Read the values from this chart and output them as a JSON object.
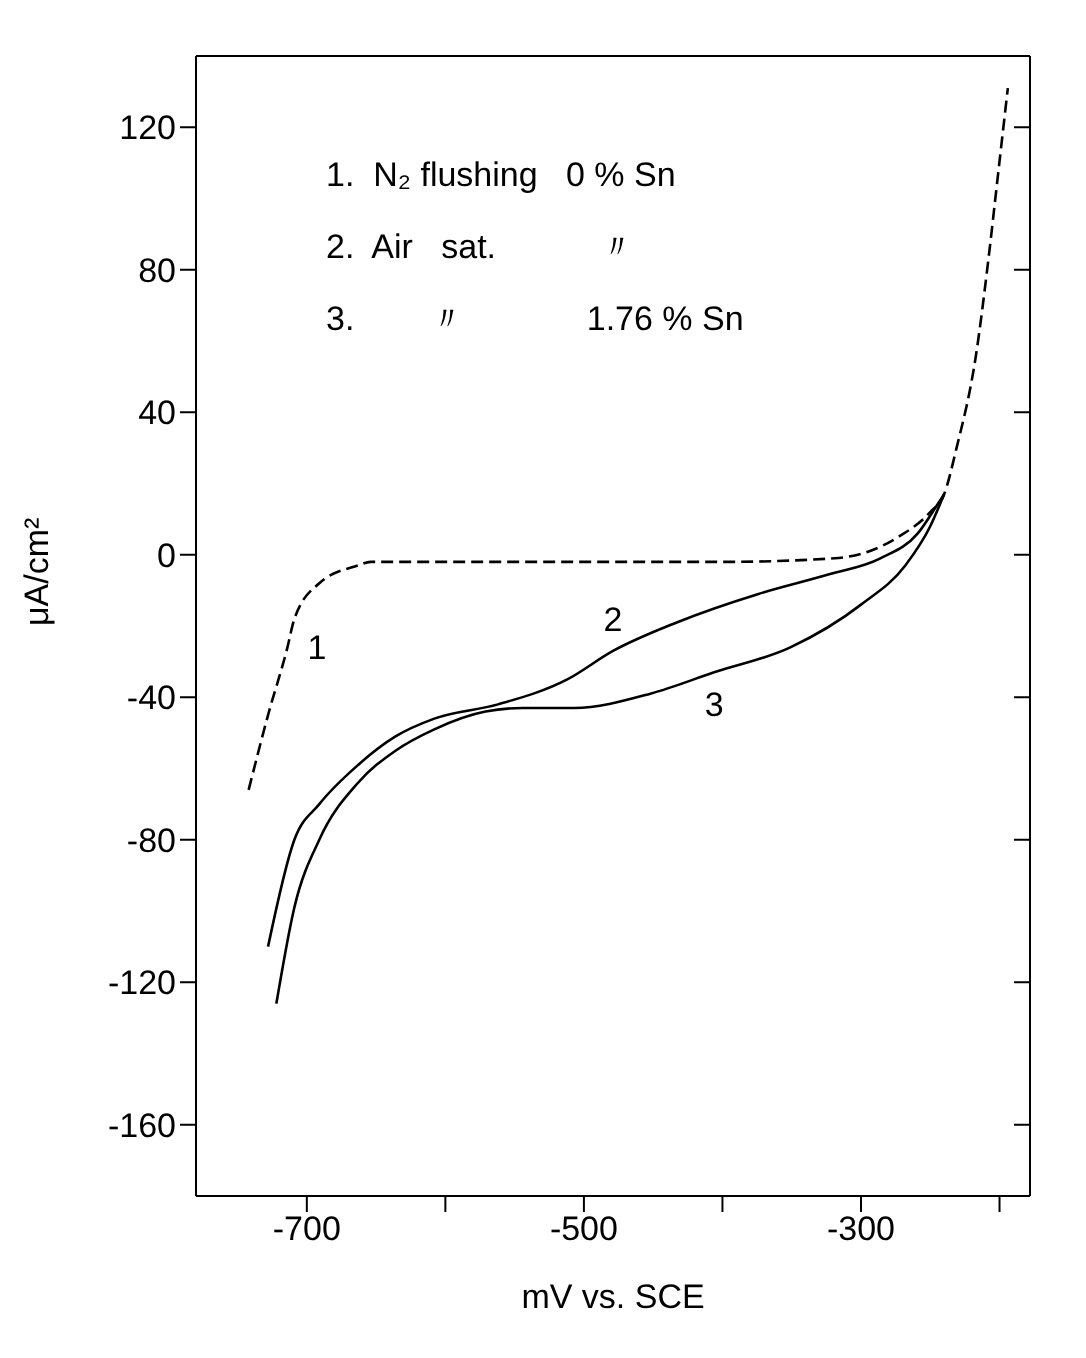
{
  "chart_data": {
    "type": "line",
    "xlabel": "mV vs. SCE",
    "ylabel": "μA/cm²",
    "xlim": [
      -780,
      -178
    ],
    "ylim": [
      -180,
      140
    ],
    "xticks": [
      -700,
      {
        "value": -600,
        "label": null
      },
      -500,
      {
        "value": -400,
        "label": null
      },
      -300,
      {
        "value": -200,
        "label": null
      }
    ],
    "yticks": [
      -160,
      -120,
      -80,
      -40,
      0,
      40,
      80,
      120
    ],
    "marker": "none",
    "series": [
      {
        "color": "#000000",
        "line_style": "dashed",
        "x": [
          -742,
          -728,
          -714,
          -709,
          -691,
          -663,
          -654,
          -600,
          -500,
          -400,
          -319,
          -273,
          -250,
          -240,
          -231,
          -217,
          -208,
          -201,
          -194
        ],
        "values": [
          -66,
          -45,
          -26,
          -18,
          -8,
          -3,
          -2,
          -2,
          -2,
          -2,
          -1,
          5,
          12,
          17,
          30,
          56,
          83,
          107,
          131
        ]
      },
      {
        "color": "#000000",
        "line_style": "solid",
        "x": [
          -728,
          -709,
          -691,
          -663,
          -636,
          -608,
          -562,
          -512,
          -479,
          -433,
          -374,
          -323,
          -286,
          -259,
          -245,
          -240
        ],
        "values": [
          -110,
          -80,
          -70,
          -59,
          -51,
          -46,
          -42,
          -35,
          -27,
          -19,
          -11,
          -5.5,
          -1,
          6,
          14,
          17
        ]
      },
      {
        "color": "#000000",
        "line_style": "solid",
        "x": [
          -722,
          -709,
          -691,
          -663,
          -636,
          -608,
          -571,
          -544,
          -507,
          -452,
          -406,
          -351,
          -300,
          -268,
          -250,
          -240
        ],
        "values": [
          -126,
          -99,
          -80,
          -64,
          -55,
          -49,
          -44,
          -43,
          -43,
          -39,
          -33,
          -26,
          -14,
          -3,
          8,
          17
        ]
      }
    ],
    "annotations": [
      "1.  N₂ flushing   0 % Sn",
      "2.  Air   sat.           〃",
      "3.        〃             1.76 % Sn",
      {
        "text": "1",
        "x": -714,
        "y": -26
      },
      {
        "text": "2",
        "x": -479,
        "y": -27
      },
      {
        "text": "3",
        "x": -406,
        "y": -33
      }
    ]
  }
}
